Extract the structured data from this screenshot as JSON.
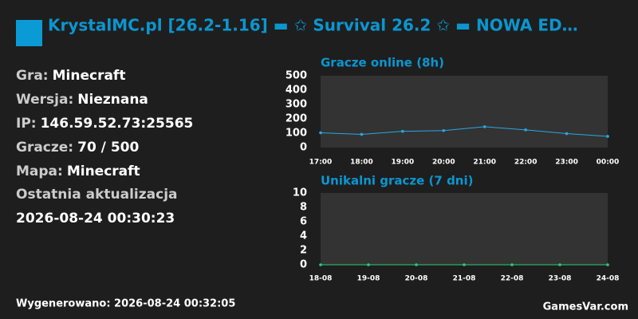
{
  "header": {
    "title": "KrystalMC.pl [26.2-1.16] ▬ ✩ Survival 26.2 ✩ ▬ NOWA ED…"
  },
  "info": [
    {
      "label": "Gra:",
      "value": "Minecraft"
    },
    {
      "label": "Wersja:",
      "value": "Nieznana"
    },
    {
      "label": "IP:",
      "value": "146.59.52.73:25565"
    },
    {
      "label": "Gracze:",
      "value": "70 / 500"
    },
    {
      "label": "Mapa:",
      "value": "Minecraft"
    }
  ],
  "last_update": {
    "label": "Ostatnia aktualizacja",
    "value": "2026-08-24 00:30:23"
  },
  "chart_data": [
    {
      "type": "line",
      "title": "Gracze online (8h)",
      "categories": [
        "17:00",
        "18:00",
        "19:00",
        "20:00",
        "21:00",
        "22:00",
        "23:00",
        "00:00"
      ],
      "series": [
        {
          "name": "Gracze",
          "color": "#29a8e0",
          "values": [
            103,
            92,
            113,
            118,
            145,
            123,
            97,
            78
          ]
        }
      ],
      "ylim": [
        0,
        500
      ],
      "yticks": [
        0,
        100,
        200,
        300,
        400,
        500
      ],
      "grid": false
    },
    {
      "type": "line",
      "title": "Unikalni gracze (7 dni)",
      "categories": [
        "18-08",
        "19-08",
        "20-08",
        "21-08",
        "22-08",
        "23-08",
        "24-08"
      ],
      "series": [
        {
          "name": "Unikalni",
          "color": "#2ecc71",
          "values": [
            0,
            0,
            0,
            0,
            0,
            0,
            0
          ]
        }
      ],
      "ylim": [
        0,
        10
      ],
      "yticks": [
        0,
        2,
        4,
        6,
        8,
        10
      ],
      "grid": false
    }
  ],
  "footer": {
    "generated": "Wygenerowano: 2026-08-24 00:32:05",
    "brand": "GamesVar.com"
  }
}
